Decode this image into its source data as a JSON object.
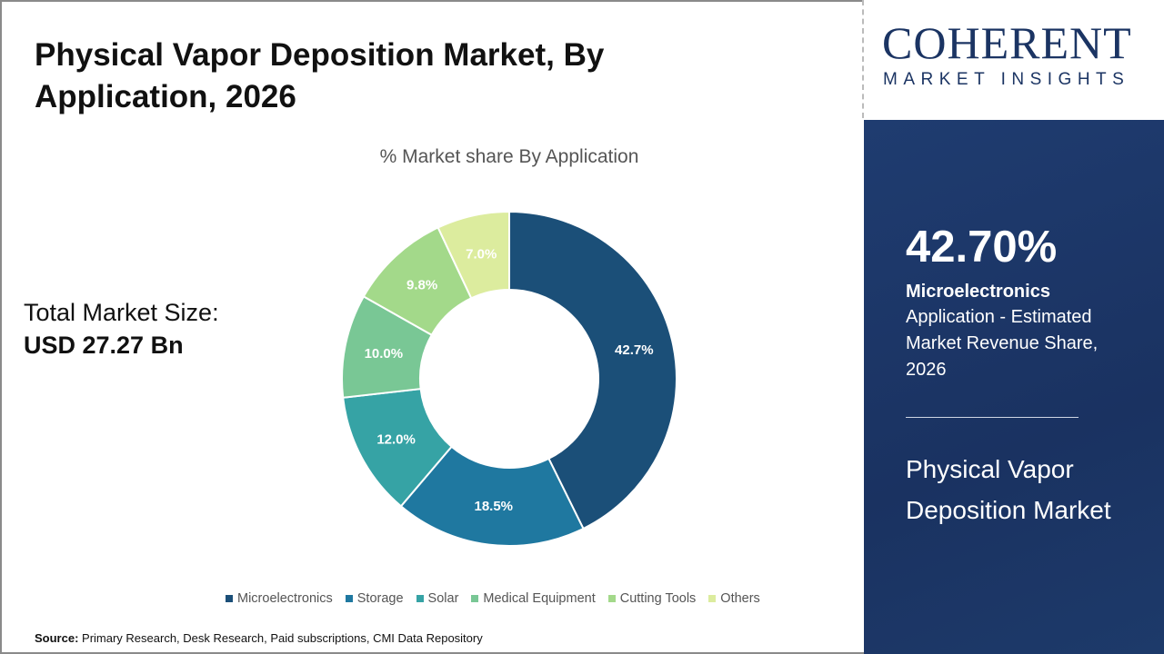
{
  "header": {
    "title": "Physical Vapor Deposition Market,  By Application, 2026"
  },
  "total": {
    "label": "Total Market Size:",
    "value": "USD 27.27 Bn"
  },
  "source": {
    "label": "Source:",
    "text": " Primary Research, Desk Research, Paid subscriptions, CMI Data Repository"
  },
  "logo": {
    "name": "COHERENT",
    "tagline": "MARKET INSIGHTS"
  },
  "panel": {
    "percent": "42.70%",
    "segment": "Microelectronics",
    "description": "Application - Estimated Market Revenue Share, 2026",
    "market": "Physical Vapor Deposition Market"
  },
  "chart_data": {
    "type": "pie",
    "donut": true,
    "title": "% Market share  By Application",
    "categories": [
      "Microelectronics",
      "Storage",
      "Solar",
      "Medical Equipment",
      "Cutting Tools",
      "Others"
    ],
    "values": [
      42.7,
      18.5,
      12.0,
      10.0,
      9.8,
      7.0
    ],
    "labels": [
      "42.7%",
      "18.5%",
      "12.0%",
      "10.0%",
      "9.8%",
      "7.0%"
    ],
    "colors": [
      "#1b4f78",
      "#1f78a0",
      "#36a3a5",
      "#79c795",
      "#a3d98a",
      "#dcec9e"
    ],
    "legend": "bottom"
  }
}
